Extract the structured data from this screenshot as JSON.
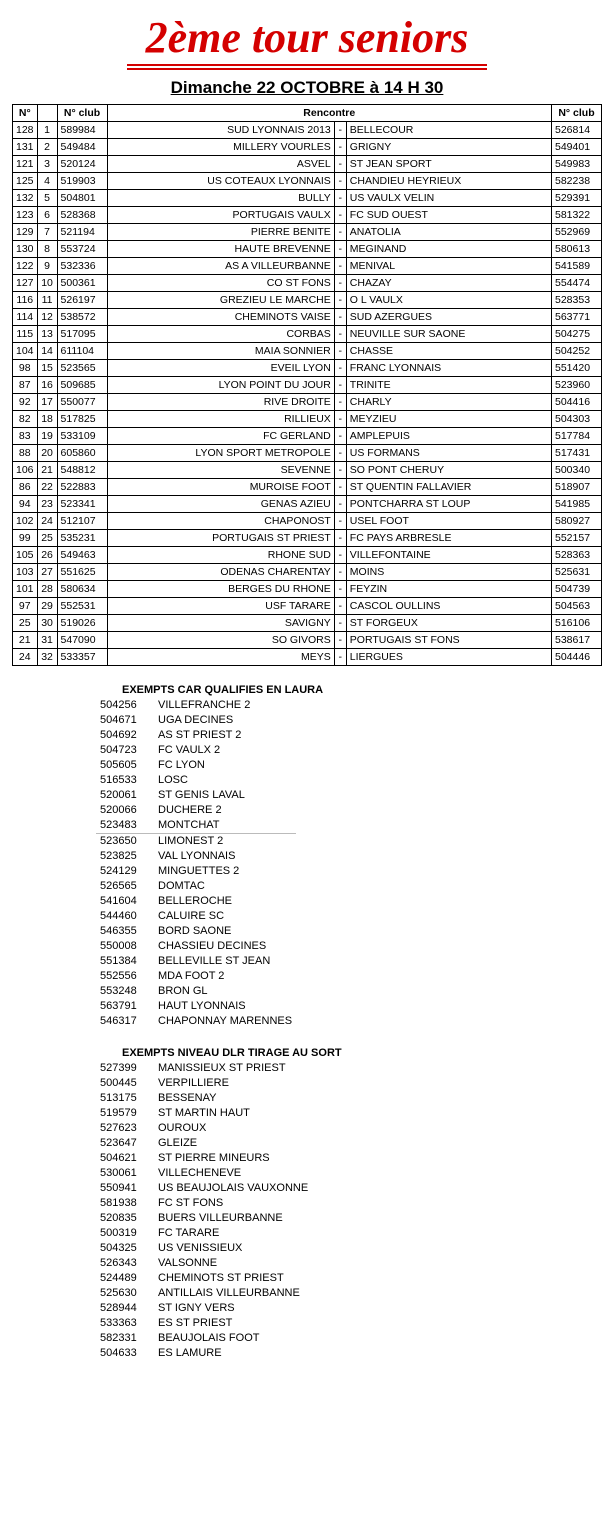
{
  "title": "2ème tour seniors",
  "subtitle": "Dimanche 22 OCTOBRE à 14 H 30",
  "headers": {
    "n": "N°",
    "nclub1": "N° club",
    "rencontre": "Rencontre",
    "nclub2": "N° club"
  },
  "matches": [
    {
      "n1": "128",
      "r": "1",
      "c1": "589984",
      "home": "SUD LYONNAIS 2013",
      "away": "BELLECOUR",
      "c2": "526814"
    },
    {
      "n1": "131",
      "r": "2",
      "c1": "549484",
      "home": "MILLERY VOURLES",
      "away": "GRIGNY",
      "c2": "549401"
    },
    {
      "n1": "121",
      "r": "3",
      "c1": "520124",
      "home": "ASVEL",
      "away": "ST JEAN SPORT",
      "c2": "549983"
    },
    {
      "n1": "125",
      "r": "4",
      "c1": "519903",
      "home": "US COTEAUX LYONNAIS",
      "away": "CHANDIEU HEYRIEUX",
      "c2": "582238"
    },
    {
      "n1": "132",
      "r": "5",
      "c1": "504801",
      "home": "BULLY",
      "away": "US VAULX VELIN",
      "c2": "529391"
    },
    {
      "n1": "123",
      "r": "6",
      "c1": "528368",
      "home": "PORTUGAIS VAULX",
      "away": "FC SUD OUEST",
      "c2": "581322"
    },
    {
      "n1": "129",
      "r": "7",
      "c1": "521194",
      "home": "PIERRE BENITE",
      "away": "ANATOLIA",
      "c2": "552969"
    },
    {
      "n1": "130",
      "r": "8",
      "c1": "553724",
      "home": "HAUTE BREVENNE",
      "away": "MEGINAND",
      "c2": "580613"
    },
    {
      "n1": "122",
      "r": "9",
      "c1": "532336",
      "home": "AS A VILLEURBANNE",
      "away": "MENIVAL",
      "c2": "541589"
    },
    {
      "n1": "127",
      "r": "10",
      "c1": "500361",
      "home": "CO ST FONS",
      "away": "CHAZAY",
      "c2": "554474"
    },
    {
      "n1": "116",
      "r": "11",
      "c1": "526197",
      "home": "GREZIEU LE MARCHE",
      "away": "O L VAULX",
      "c2": "528353"
    },
    {
      "n1": "114",
      "r": "12",
      "c1": "538572",
      "home": "CHEMINOTS VAISE",
      "away": "SUD AZERGUES",
      "c2": "563771"
    },
    {
      "n1": "115",
      "r": "13",
      "c1": "517095",
      "home": "CORBAS",
      "away": "NEUVILLE SUR SAONE",
      "c2": "504275"
    },
    {
      "n1": "104",
      "r": "14",
      "c1": "611104",
      "home": "MAIA SONNIER",
      "away": "CHASSE",
      "c2": "504252"
    },
    {
      "n1": "98",
      "r": "15",
      "c1": "523565",
      "home": "EVEIL LYON",
      "away": "FRANC LYONNAIS",
      "c2": "551420"
    },
    {
      "n1": "87",
      "r": "16",
      "c1": "509685",
      "home": "LYON POINT DU JOUR",
      "away": "TRINITE",
      "c2": "523960"
    },
    {
      "n1": "92",
      "r": "17",
      "c1": "550077",
      "home": "RIVE DROITE",
      "away": "CHARLY",
      "c2": "504416"
    },
    {
      "n1": "82",
      "r": "18",
      "c1": "517825",
      "home": "RILLIEUX",
      "away": "MEYZIEU",
      "c2": "504303"
    },
    {
      "n1": "83",
      "r": "19",
      "c1": "533109",
      "home": "FC GERLAND",
      "away": "AMPLEPUIS",
      "c2": "517784"
    },
    {
      "n1": "88",
      "r": "20",
      "c1": "605860",
      "home": "LYON SPORT METROPOLE",
      "away": "US FORMANS",
      "c2": "517431"
    },
    {
      "n1": "106",
      "r": "21",
      "c1": "548812",
      "home": "SEVENNE",
      "away": "SO PONT CHERUY",
      "c2": "500340"
    },
    {
      "n1": "86",
      "r": "22",
      "c1": "522883",
      "home": "MUROISE FOOT",
      "away": "ST QUENTIN FALLAVIER",
      "c2": "518907"
    },
    {
      "n1": "94",
      "r": "23",
      "c1": "523341",
      "home": "GENAS AZIEU",
      "away": "PONTCHARRA ST LOUP",
      "c2": "541985"
    },
    {
      "n1": "102",
      "r": "24",
      "c1": "512107",
      "home": "CHAPONOST",
      "away": "USEL FOOT",
      "c2": "580927"
    },
    {
      "n1": "99",
      "r": "25",
      "c1": "535231",
      "home": "PORTUGAIS ST PRIEST",
      "away": "FC PAYS ARBRESLE",
      "c2": "552157"
    },
    {
      "n1": "105",
      "r": "26",
      "c1": "549463",
      "home": "RHONE SUD",
      "away": "VILLEFONTAINE",
      "c2": "528363"
    },
    {
      "n1": "103",
      "r": "27",
      "c1": "551625",
      "home": "ODENAS CHARENTAY",
      "away": "MOINS",
      "c2": "525631"
    },
    {
      "n1": "101",
      "r": "28",
      "c1": "580634",
      "home": "BERGES DU RHONE",
      "away": "FEYZIN",
      "c2": "504739"
    },
    {
      "n1": "97",
      "r": "29",
      "c1": "552531",
      "home": "USF TARARE",
      "away": "CASCOL OULLINS",
      "c2": "504563"
    },
    {
      "n1": "25",
      "r": "30",
      "c1": "519026",
      "home": "SAVIGNY",
      "away": "ST FORGEUX",
      "c2": "516106"
    },
    {
      "n1": "21",
      "r": "31",
      "c1": "547090",
      "home": "SO GIVORS",
      "away": "PORTUGAIS ST FONS",
      "c2": "538617"
    },
    {
      "n1": "24",
      "r": "32",
      "c1": "533357",
      "home": "MEYS",
      "away": "LIERGUES",
      "c2": "504446"
    }
  ],
  "exempts_laura_title": "EXEMPTS CAR QUALIFIES EN LAURA",
  "exempts_laura": [
    {
      "id": "504256",
      "name": "VILLEFRANCHE 2"
    },
    {
      "id": "504671",
      "name": "UGA DECINES"
    },
    {
      "id": "504692",
      "name": "AS ST PRIEST 2"
    },
    {
      "id": "504723",
      "name": "FC VAULX 2"
    },
    {
      "id": "505605",
      "name": "FC LYON"
    },
    {
      "id": "516533",
      "name": "LOSC"
    },
    {
      "id": "520061",
      "name": "ST GENIS LAVAL"
    },
    {
      "id": "520066",
      "name": "DUCHERE 2"
    },
    {
      "id": "523483",
      "name": "MONTCHAT"
    },
    {
      "id": "523650",
      "name": "LIMONEST 2",
      "divider": true
    },
    {
      "id": "523825",
      "name": "VAL LYONNAIS"
    },
    {
      "id": "524129",
      "name": "MINGUETTES 2"
    },
    {
      "id": "526565",
      "name": "DOMTAC"
    },
    {
      "id": "541604",
      "name": "BELLEROCHE"
    },
    {
      "id": "544460",
      "name": "CALUIRE SC"
    },
    {
      "id": "546355",
      "name": "BORD SAONE"
    },
    {
      "id": "550008",
      "name": "CHASSIEU DECINES"
    },
    {
      "id": "551384",
      "name": "BELLEVILLE ST JEAN"
    },
    {
      "id": "552556",
      "name": "MDA FOOT 2"
    },
    {
      "id": "553248",
      "name": "BRON GL"
    },
    {
      "id": "563791",
      "name": "HAUT LYONNAIS"
    },
    {
      "id": "546317",
      "name": "CHAPONNAY MARENNES"
    }
  ],
  "exempts_dlr_title": "EXEMPTS NIVEAU DLR TIRAGE AU SORT",
  "exempts_dlr": [
    {
      "id": "527399",
      "name": "MANISSIEUX ST PRIEST"
    },
    {
      "id": "500445",
      "name": "VERPILLIERE"
    },
    {
      "id": "513175",
      "name": "BESSENAY"
    },
    {
      "id": "519579",
      "name": "ST MARTIN HAUT"
    },
    {
      "id": "527623",
      "name": "OUROUX"
    },
    {
      "id": "523647",
      "name": "GLEIZE"
    },
    {
      "id": "504621",
      "name": "ST PIERRE MINEURS"
    },
    {
      "id": "530061",
      "name": "VILLECHENEVE"
    },
    {
      "id": "550941",
      "name": "US BEAUJOLAIS VAUXONNE"
    },
    {
      "id": "581938",
      "name": "FC ST FONS"
    },
    {
      "id": "520835",
      "name": "BUERS VILLEURBANNE"
    },
    {
      "id": "500319",
      "name": "FC TARARE"
    },
    {
      "id": "504325",
      "name": "US VENISSIEUX"
    },
    {
      "id": "526343",
      "name": "VALSONNE"
    },
    {
      "id": "524489",
      "name": "CHEMINOTS ST PRIEST"
    },
    {
      "id": "525630",
      "name": "ANTILLAIS VILLEURBANNE"
    },
    {
      "id": "528944",
      "name": "ST IGNY VERS"
    },
    {
      "id": "533363",
      "name": "ES ST PRIEST"
    },
    {
      "id": "582331",
      "name": "BEAUJOLAIS FOOT"
    },
    {
      "id": "504633",
      "name": "ES LAMURE"
    }
  ]
}
